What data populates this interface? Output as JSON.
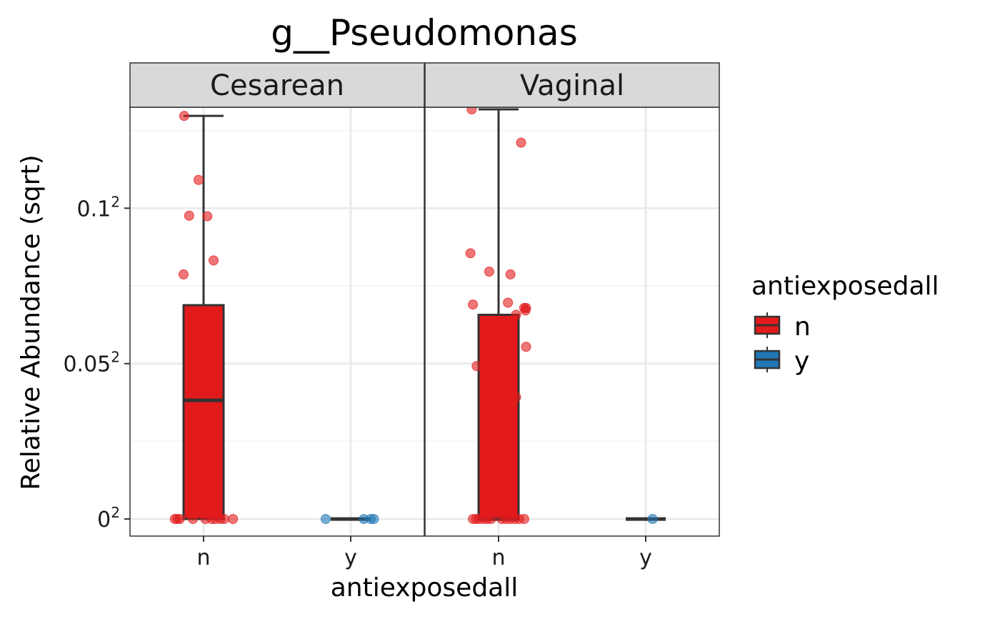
{
  "chart_data": {
    "type": "box",
    "title": "g__Pseudomonas",
    "xlabel": "antiexposedall",
    "ylabel": "Relative Abundance (sqrt)",
    "y_scale": "sqrt",
    "ylim": [
      -0.0055,
      0.1325
    ],
    "yticks": [
      {
        "base": "0",
        "exp": "2",
        "value": 0
      },
      {
        "base": "0.05",
        "exp": "2",
        "value": 0.05
      },
      {
        "base": "0.1",
        "exp": "2",
        "value": 0.1
      }
    ],
    "y_minor_sqrt": [
      0.025,
      0.075,
      0.125
    ],
    "grid": true,
    "legend": {
      "title": "antiexposedall",
      "position": "right",
      "entries": [
        {
          "label": "n",
          "color": "#E31A1C"
        },
        {
          "label": "y",
          "color": "#1F78B4"
        }
      ]
    },
    "categories": [
      "n",
      "y"
    ],
    "facets": [
      {
        "label": "Cesarean",
        "boxes": [
          {
            "group": "n",
            "color": "#E31A1C",
            "min": 0,
            "q1": 0,
            "median": 0.0382,
            "q3": 0.0688,
            "max": 0.1297
          },
          {
            "group": "y",
            "color": "#1F78B4",
            "min": 0,
            "q1": 0,
            "median": 0,
            "q3": 0,
            "max": 0
          }
        ],
        "points": [
          {
            "group": "n",
            "jitter": -0.31,
            "sqrt_y": 0.1297
          },
          {
            "group": "n",
            "jitter": -0.08,
            "sqrt_y": 0.1091
          },
          {
            "group": "n",
            "jitter": -0.23,
            "sqrt_y": 0.0976
          },
          {
            "group": "n",
            "jitter": 0.06,
            "sqrt_y": 0.0974
          },
          {
            "group": "n",
            "jitter": 0.16,
            "sqrt_y": 0.0832
          },
          {
            "group": "n",
            "jitter": -0.32,
            "sqrt_y": 0.0787
          },
          {
            "group": "n",
            "jitter": 0.13,
            "sqrt_y": 0.0653
          },
          {
            "group": "n",
            "jitter": 0.15,
            "sqrt_y": 0.0594
          },
          {
            "group": "n",
            "jitter": 0.15,
            "sqrt_y": 0.0354
          },
          {
            "group": "n",
            "jitter": -0.46,
            "sqrt_y": 0
          },
          {
            "group": "n",
            "jitter": -0.42,
            "sqrt_y": 0
          },
          {
            "group": "n",
            "jitter": -0.38,
            "sqrt_y": 0
          },
          {
            "group": "n",
            "jitter": -0.17,
            "sqrt_y": 0
          },
          {
            "group": "n",
            "jitter": 0.03,
            "sqrt_y": 0
          },
          {
            "group": "n",
            "jitter": 0.13,
            "sqrt_y": 0
          },
          {
            "group": "n",
            "jitter": 0.19,
            "sqrt_y": 0
          },
          {
            "group": "n",
            "jitter": 0.27,
            "sqrt_y": 0
          },
          {
            "group": "n",
            "jitter": 0.33,
            "sqrt_y": 0
          },
          {
            "group": "n",
            "jitter": 0.47,
            "sqrt_y": 0
          },
          {
            "group": "y",
            "jitter": -0.4,
            "sqrt_y": 0
          },
          {
            "group": "y",
            "jitter": 0.21,
            "sqrt_y": 0
          },
          {
            "group": "y",
            "jitter": 0.32,
            "sqrt_y": 0
          },
          {
            "group": "y",
            "jitter": 0.37,
            "sqrt_y": 0
          }
        ]
      },
      {
        "label": "Vaginal",
        "boxes": [
          {
            "group": "n",
            "color": "#E31A1C",
            "min": 0,
            "q1": 0,
            "median": 0,
            "q3": 0.0657,
            "max": 0.1318
          },
          {
            "group": "y",
            "color": "#1F78B4",
            "min": 0,
            "q1": 0,
            "median": 0,
            "q3": 0,
            "max": 0
          }
        ],
        "points": [
          {
            "group": "n",
            "jitter": -0.43,
            "sqrt_y": 0.1318
          },
          {
            "group": "n",
            "jitter": 0.36,
            "sqrt_y": 0.1211
          },
          {
            "group": "n",
            "jitter": -0.45,
            "sqrt_y": 0.0855
          },
          {
            "group": "n",
            "jitter": -0.15,
            "sqrt_y": 0.0796
          },
          {
            "group": "n",
            "jitter": 0.19,
            "sqrt_y": 0.0787
          },
          {
            "group": "n",
            "jitter": -0.41,
            "sqrt_y": 0.069
          },
          {
            "group": "n",
            "jitter": 0.15,
            "sqrt_y": 0.0696
          },
          {
            "group": "n",
            "jitter": 0.41,
            "sqrt_y": 0.0679
          },
          {
            "group": "n",
            "jitter": 0.44,
            "sqrt_y": 0.0679
          },
          {
            "group": "n",
            "jitter": 0.43,
            "sqrt_y": 0.0671
          },
          {
            "group": "n",
            "jitter": 0.28,
            "sqrt_y": 0.0657
          },
          {
            "group": "n",
            "jitter": 0.44,
            "sqrt_y": 0.0554
          },
          {
            "group": "n",
            "jitter": -0.35,
            "sqrt_y": 0.0492
          },
          {
            "group": "n",
            "jitter": -0.18,
            "sqrt_y": 0.0421
          },
          {
            "group": "n",
            "jitter": 0.28,
            "sqrt_y": 0.0392
          },
          {
            "group": "n",
            "jitter": -0.41,
            "sqrt_y": 0
          },
          {
            "group": "n",
            "jitter": -0.36,
            "sqrt_y": 0
          },
          {
            "group": "n",
            "jitter": -0.31,
            "sqrt_y": 0
          },
          {
            "group": "n",
            "jitter": -0.24,
            "sqrt_y": 0
          },
          {
            "group": "n",
            "jitter": -0.18,
            "sqrt_y": 0
          },
          {
            "group": "n",
            "jitter": -0.12,
            "sqrt_y": 0
          },
          {
            "group": "n",
            "jitter": 0.05,
            "sqrt_y": 0
          },
          {
            "group": "n",
            "jitter": 0.12,
            "sqrt_y": 0
          },
          {
            "group": "n",
            "jitter": 0.19,
            "sqrt_y": 0
          },
          {
            "group": "n",
            "jitter": 0.26,
            "sqrt_y": 0
          },
          {
            "group": "n",
            "jitter": 0.33,
            "sqrt_y": 0
          },
          {
            "group": "n",
            "jitter": 0.41,
            "sqrt_y": 0
          },
          {
            "group": "y",
            "jitter": 0.11,
            "sqrt_y": 0
          }
        ]
      }
    ]
  }
}
